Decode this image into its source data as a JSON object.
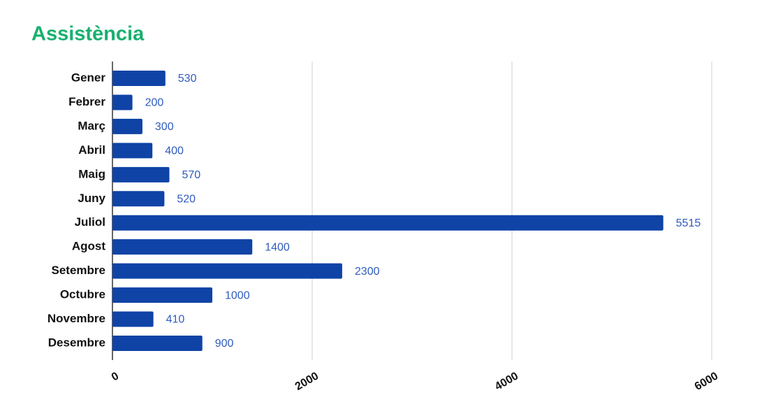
{
  "chart_data": {
    "type": "bar",
    "orientation": "horizontal",
    "title": "Assistència",
    "categories": [
      "Gener",
      "Febrer",
      "Març",
      "Abril",
      "Maig",
      "Juny",
      "Juliol",
      "Agost",
      "Setembre",
      "Octubre",
      "Novembre",
      "Desembre"
    ],
    "values": [
      530,
      200,
      300,
      400,
      570,
      520,
      5515,
      1400,
      2300,
      1000,
      410,
      900
    ],
    "color": "#0f43a6",
    "xlim": [
      0,
      6000
    ],
    "xticks": [
      0,
      2000,
      4000,
      6000
    ],
    "grid": true
  }
}
